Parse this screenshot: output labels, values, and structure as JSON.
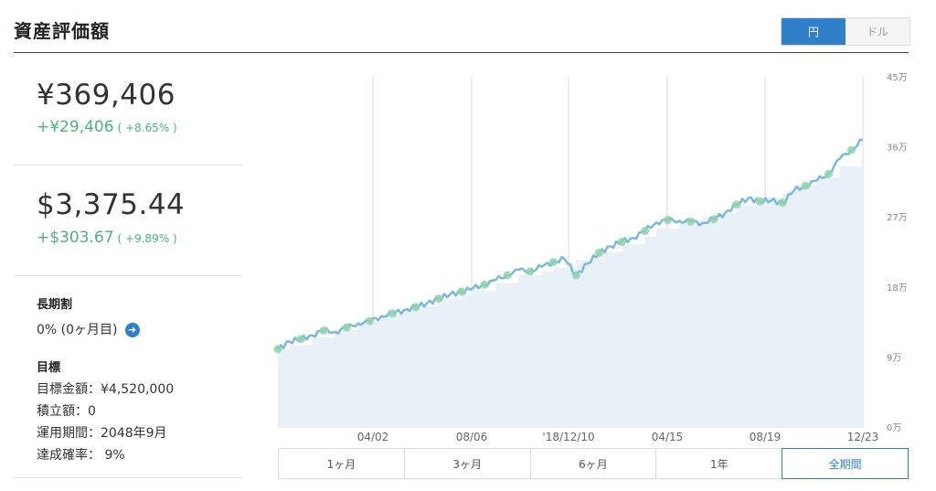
{
  "page": {
    "title": "資産評価額"
  },
  "currency_toggle": {
    "options": [
      "円",
      "ドル"
    ],
    "selected": "円"
  },
  "summary": {
    "jpy": {
      "value": "¥369,406",
      "gain": "+¥29,406",
      "gain_pct": "( +8.65% )"
    },
    "usd": {
      "value": "$3,375.44",
      "gain": "+$303.67",
      "gain_pct": "( +9.89% )"
    }
  },
  "long_term": {
    "heading": "長期割",
    "status": "0% (0ヶ月目)",
    "button_icon": "arrow-right-icon"
  },
  "goal": {
    "heading": "目標",
    "target_amount": "目標金額：¥4,520,000",
    "contribution": "積立額：0",
    "period": "運用期間：2048年9月",
    "probability": "達成確率：  9%"
  },
  "range_buttons": {
    "options": [
      "1ヶ月",
      "3ヶ月",
      "6ヶ月",
      "1年",
      "全期間"
    ],
    "selected": "全期間"
  },
  "colors": {
    "accent": "#2f7fc9",
    "gain": "#4bb27d",
    "line": "#7ab8e0",
    "area": "#e8f0f8",
    "marker": "#8fd3a8"
  },
  "chart_data": {
    "type": "line",
    "title": "",
    "y_unit": "万円",
    "y_tick_labels": [
      "0万",
      "9万",
      "18万",
      "27万",
      "36万",
      "45万"
    ],
    "ylim": [
      0,
      45
    ],
    "x_tick_labels": [
      "04/02",
      "08/06",
      "'18/12/10",
      "04/15",
      "08/19",
      "12/23"
    ],
    "grid": "vertical",
    "series": [
      {
        "values": [
          10.0,
          11.0,
          11.3,
          11.8,
          12.4,
          12.2,
          12.8,
          13.3,
          13.6,
          14.2,
          14.6,
          15.0,
          15.4,
          15.9,
          16.5,
          17.0,
          17.4,
          17.8,
          18.3,
          18.9,
          19.5,
          20.2,
          20.0,
          20.6,
          21.2,
          21.6,
          19.5,
          21.0,
          22.4,
          23.2,
          23.8,
          24.3,
          25.2,
          26.3,
          26.6,
          26.5,
          26.4,
          26.2,
          26.7,
          27.5,
          28.6,
          29.4,
          29.0,
          29.1,
          28.8,
          30.4,
          31.0,
          31.7,
          32.5,
          34.5,
          35.6,
          36.9
        ]
      },
      {
        "values": [
          10.0,
          10.5,
          10.5,
          11.5,
          11.5,
          12.5,
          12.5,
          13.5,
          13.5,
          14.5,
          14.5,
          15.0,
          15.5,
          15.5,
          16.5,
          16.5,
          17.0,
          17.5,
          17.5,
          18.5,
          18.5,
          19.5,
          19.5,
          20.0,
          20.5,
          20.5,
          21.5,
          21.5,
          22.5,
          22.5,
          23.5,
          23.5,
          24.5,
          25.5,
          25.5,
          26.5,
          26.5,
          27.0,
          27.5,
          27.5,
          28.5,
          28.5,
          29.5,
          29.5,
          30.0,
          31.0,
          31.0,
          32.0,
          32.0,
          33.5,
          33.5,
          34.0
        ]
      }
    ],
    "markers_at_index": [
      0,
      2,
      4,
      6,
      8,
      10,
      12,
      14,
      16,
      18,
      20,
      22,
      24,
      26,
      28,
      30,
      32,
      34,
      36,
      38,
      40,
      42,
      44,
      46,
      48,
      50
    ]
  }
}
